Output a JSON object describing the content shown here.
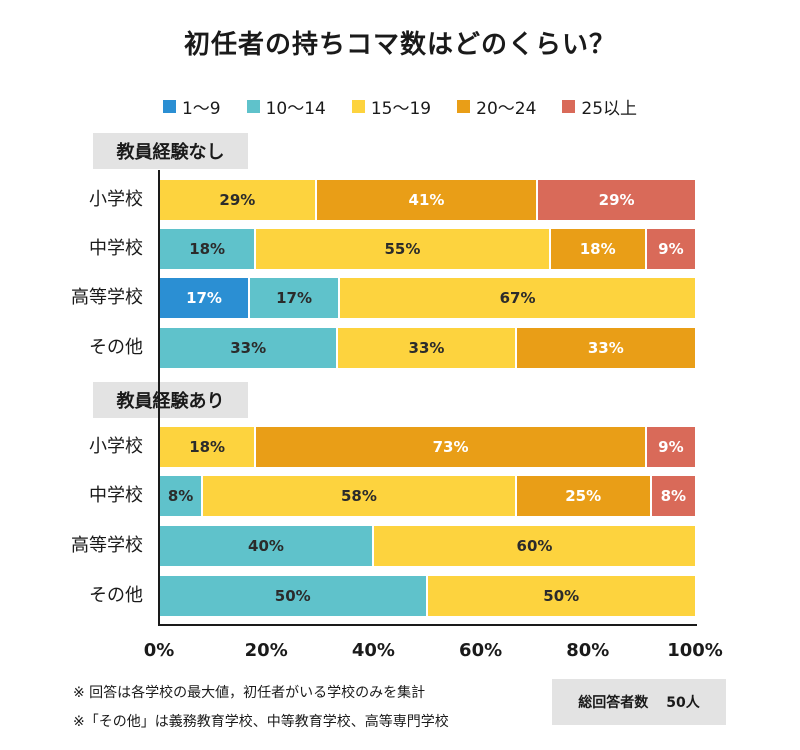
{
  "title": "初任者の持ちコマ数はどのくらい？",
  "colors": {
    "c1_9": "#2b8fd3",
    "c10_14": "#5fc2cb",
    "c15_19": "#fdd33e",
    "c20_24": "#e99e17",
    "c25": "#d96a59"
  },
  "chart_data": {
    "type": "bar",
    "orientation": "horizontal",
    "stacked": true,
    "xlim": [
      0,
      100
    ],
    "x_ticks": [
      "0%",
      "20%",
      "40%",
      "60%",
      "80%",
      "100%"
    ],
    "legend_position": "top",
    "series_names": [
      "1〜9",
      "10〜14",
      "15〜19",
      "20〜24",
      "25以上"
    ],
    "groups": [
      {
        "label": "教員経験なし",
        "rows": [
          {
            "label": "小学校",
            "values": [
              0,
              0,
              29,
              41,
              29
            ],
            "labels": [
              "",
              "",
              "29%",
              "41%",
              "29%"
            ]
          },
          {
            "label": "中学校",
            "values": [
              0,
              18,
              55,
              18,
              9
            ],
            "labels": [
              "",
              "18%",
              "55%",
              "18%",
              "9%"
            ]
          },
          {
            "label": "高等学校",
            "values": [
              17,
              17,
              67,
              0,
              0
            ],
            "labels": [
              "17%",
              "17%",
              "67%",
              "",
              ""
            ]
          },
          {
            "label": "その他",
            "values": [
              0,
              33,
              33,
              33,
              0
            ],
            "labels": [
              "",
              "33%",
              "33%",
              "33%",
              ""
            ]
          }
        ]
      },
      {
        "label": "教員経験あり",
        "rows": [
          {
            "label": "小学校",
            "values": [
              0,
              0,
              18,
              73,
              9
            ],
            "labels": [
              "",
              "",
              "18%",
              "73%",
              "9%"
            ]
          },
          {
            "label": "中学校",
            "values": [
              0,
              8,
              58,
              25,
              8
            ],
            "labels": [
              "",
              "8%",
              "58%",
              "25%",
              "8%"
            ]
          },
          {
            "label": "高等学校",
            "values": [
              0,
              40,
              60,
              0,
              0
            ],
            "labels": [
              "",
              "40%",
              "60%",
              "",
              ""
            ]
          },
          {
            "label": "その他",
            "values": [
              0,
              50,
              50,
              0,
              0
            ],
            "labels": [
              "",
              "50%",
              "50%",
              "",
              ""
            ]
          }
        ]
      }
    ]
  },
  "notes": [
    "※ 回答は各学校の最大値，初任者がいる学校のみを集計",
    "※「その他」は義務教育学校、中等教育学校、高等専門学校"
  ],
  "respondents": {
    "label": "総回答者数",
    "value": "50人"
  }
}
